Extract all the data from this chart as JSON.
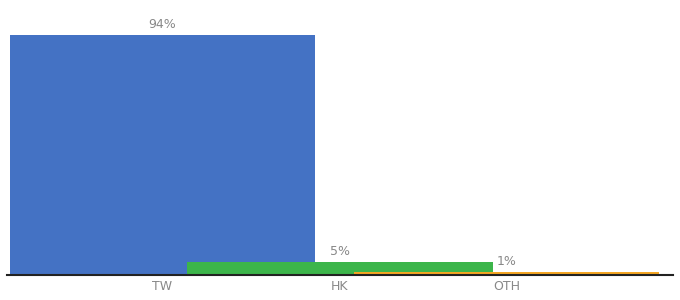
{
  "categories": [
    "TW",
    "HK",
    "OTH"
  ],
  "values": [
    94,
    5,
    1
  ],
  "bar_colors": [
    "#4472C4",
    "#3CB54A",
    "#F5A623"
  ],
  "labels": [
    "94%",
    "5%",
    "1%"
  ],
  "ylim": [
    0,
    105
  ],
  "background_color": "#ffffff",
  "bar_width": 0.55,
  "label_fontsize": 9,
  "tick_fontsize": 9,
  "x_positions": [
    0.18,
    0.5,
    0.8
  ]
}
